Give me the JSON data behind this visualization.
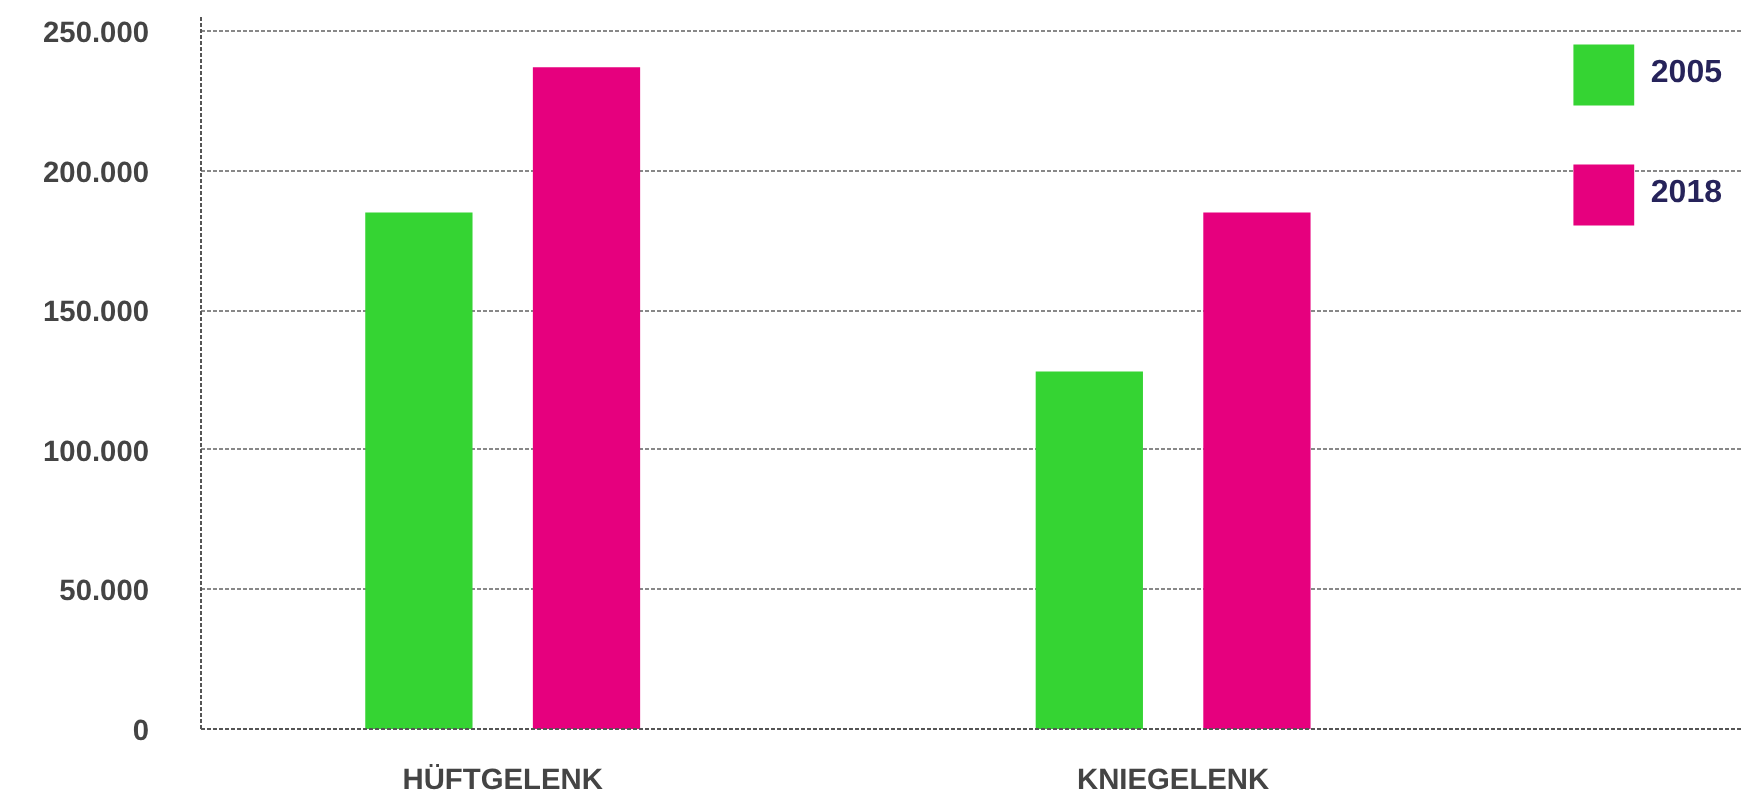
{
  "chart_data": {
    "type": "bar",
    "categories": [
      "HÜFTGELENK",
      "KNIEGELENK"
    ],
    "series": [
      {
        "name": "2005",
        "color": "#35d433",
        "values": [
          185000,
          128000
        ]
      },
      {
        "name": "2018",
        "color": "#e6007e",
        "values": [
          237000,
          185000
        ]
      }
    ],
    "ylim": [
      0,
      255000
    ],
    "yticks": [
      {
        "value": 0,
        "label": "0"
      },
      {
        "value": 50000,
        "label": "50.000"
      },
      {
        "value": 100000,
        "label": "100.000"
      },
      {
        "value": 150000,
        "label": "150.000"
      },
      {
        "value": 200000,
        "label": "200.000"
      },
      {
        "value": 250000,
        "label": "250.000"
      }
    ],
    "grid": "y",
    "legend": "top right"
  }
}
